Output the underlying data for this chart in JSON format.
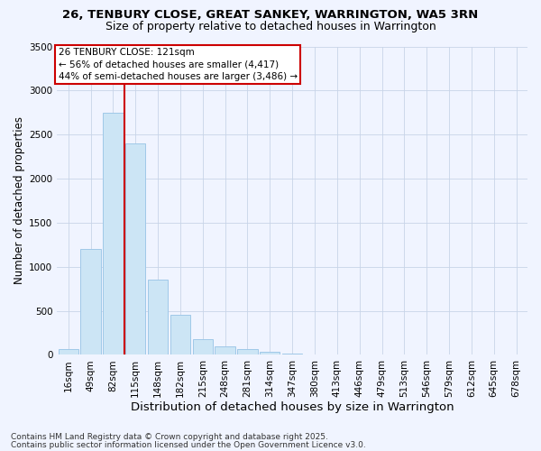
{
  "title1": "26, TENBURY CLOSE, GREAT SANKEY, WARRINGTON, WA5 3RN",
  "title2": "Size of property relative to detached houses in Warrington",
  "xlabel": "Distribution of detached houses by size in Warrington",
  "ylabel": "Number of detached properties",
  "categories": [
    "16sqm",
    "49sqm",
    "82sqm",
    "115sqm",
    "148sqm",
    "182sqm",
    "215sqm",
    "248sqm",
    "281sqm",
    "314sqm",
    "347sqm",
    "380sqm",
    "413sqm",
    "446sqm",
    "479sqm",
    "513sqm",
    "546sqm",
    "579sqm",
    "612sqm",
    "645sqm",
    "678sqm"
  ],
  "values": [
    70,
    1200,
    2750,
    2400,
    850,
    450,
    175,
    100,
    60,
    30,
    10,
    5,
    3,
    2,
    1,
    0,
    0,
    0,
    0,
    0,
    0
  ],
  "bar_color": "#cce5f5",
  "bar_edge_color": "#a0c8e8",
  "vline_color": "#cc0000",
  "vline_pos": 2.5,
  "annotation_text": "26 TENBURY CLOSE: 121sqm\n← 56% of detached houses are smaller (4,417)\n44% of semi-detached houses are larger (3,486) →",
  "annotation_box_color": "#ffffff",
  "annotation_box_edge": "#cc0000",
  "ylim": [
    0,
    3500
  ],
  "yticks": [
    0,
    500,
    1000,
    1500,
    2000,
    2500,
    3000,
    3500
  ],
  "footer1": "Contains HM Land Registry data © Crown copyright and database right 2025.",
  "footer2": "Contains public sector information licensed under the Open Government Licence v3.0.",
  "bg_color": "#f0f4ff",
  "grid_color": "#c8d4e8",
  "title1_fontsize": 9.5,
  "title2_fontsize": 9,
  "xlabel_fontsize": 9.5,
  "ylabel_fontsize": 8.5,
  "annotation_fontsize": 7.5,
  "footer_fontsize": 6.5,
  "tick_fontsize": 7.5
}
